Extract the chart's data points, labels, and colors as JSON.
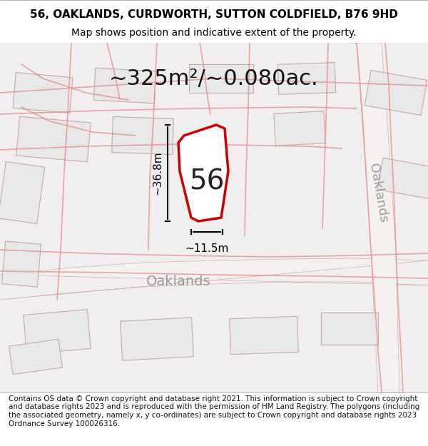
{
  "title_line1": "56, OAKLANDS, CURDWORTH, SUTTON COLDFIELD, B76 9HD",
  "title_line2": "Map shows position and indicative extent of the property.",
  "area_text": "~325m²/~0.080ac.",
  "dim_height": "~36.8m",
  "dim_width": "~11.5m",
  "label_56": "56",
  "road_label": "Oaklands",
  "road_label_rotated": "Oaklands",
  "footer_text": "Contains OS data © Crown copyright and database right 2021. This information is subject to Crown copyright and database rights 2023 and is reproduced with the permission of HM Land Registry. The polygons (including the associated geometry, namely x, y co-ordinates) are subject to Crown copyright and database rights 2023 Ordnance Survey 100026316.",
  "bg_color": "#f5f5f5",
  "map_bg": "#f0eeee",
  "road_color": "#ffffff",
  "road_stroke": "#d0a0a0",
  "building_fill": "#e8e8e8",
  "building_stroke": "#c0a0a0",
  "highlight_fill": "#ffffff",
  "highlight_stroke": "#cc0000",
  "dim_line_color": "#000000",
  "text_color": "#000000",
  "title_fontsize": 11,
  "subtitle_fontsize": 10,
  "area_fontsize": 22,
  "dim_fontsize": 11,
  "label_fontsize": 28,
  "road_fontsize": 14,
  "footer_fontsize": 8
}
